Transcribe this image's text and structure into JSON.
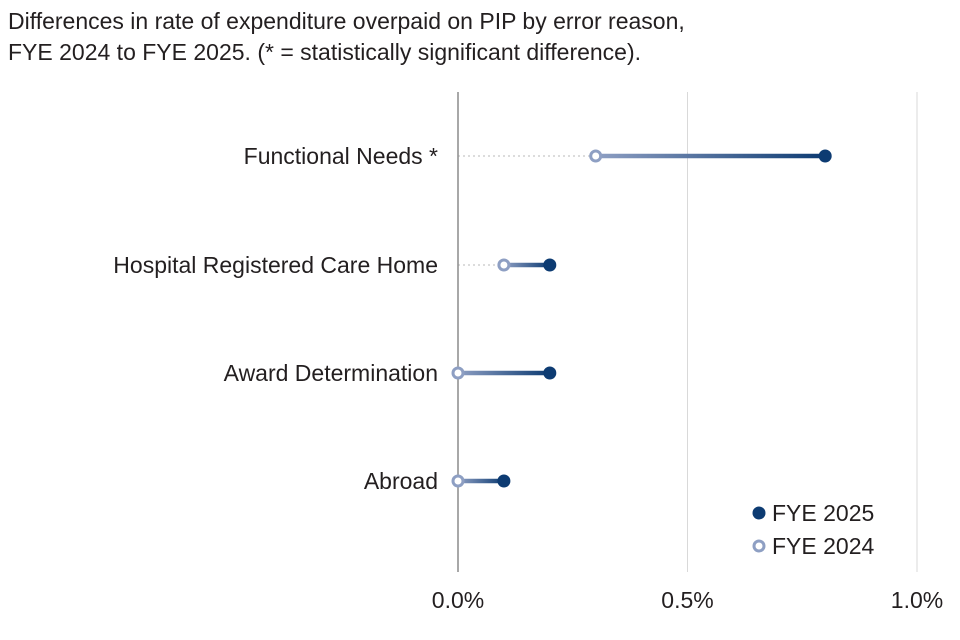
{
  "title": {
    "line1": "Differences in rate of expenditure overpaid on PIP by error reason,",
    "line2": "FYE 2024 to FYE 2025. (* = statistically significant difference)."
  },
  "colors": {
    "fye2025": "#0d3b72",
    "fye2024": "#8e9fc3",
    "axis": "#8c8c8c",
    "grid": "#d9d9d9",
    "guide": "#c8c8c8",
    "text": "#231f20"
  },
  "chart_data": {
    "type": "dumbbell",
    "title": "Differences in rate of expenditure overpaid on PIP by error reason, FYE 2024 to FYE 2025. (* = statistically significant difference).",
    "xlabel": "",
    "ylabel": "",
    "categories": [
      "Functional Needs *",
      "Hospital Registered Care Home",
      "Award Determination",
      "Abroad"
    ],
    "series": [
      {
        "name": "FYE 2024",
        "values": [
          0.3,
          0.1,
          0.0,
          0.0
        ]
      },
      {
        "name": "FYE 2025",
        "values": [
          0.8,
          0.2,
          0.2,
          0.1
        ]
      }
    ],
    "xlim": [
      0,
      1
    ],
    "xticks": [
      0,
      0.5,
      1
    ],
    "xtick_labels": [
      "0.0%",
      "0.5%",
      "1.0%"
    ],
    "grid": "vertical",
    "legend": {
      "position": "bottom-right",
      "entries": [
        "FYE 2025",
        "FYE 2024"
      ]
    }
  }
}
